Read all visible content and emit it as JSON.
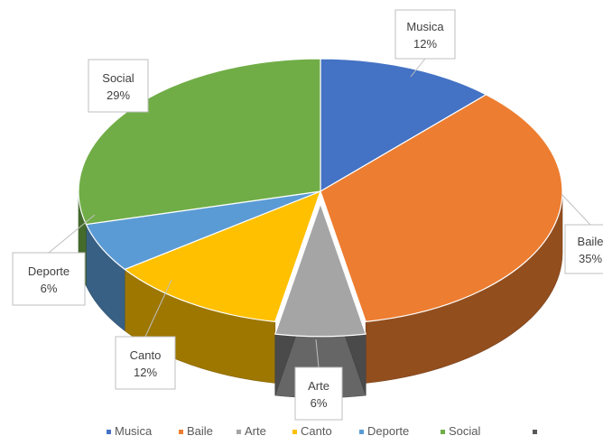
{
  "chart_data": {
    "type": "pie",
    "style": "3d",
    "title": "",
    "slices": [
      {
        "label": "Musica",
        "value": 12,
        "display": "12%",
        "color": "#4472c4"
      },
      {
        "label": "Baile",
        "value": 35,
        "display": "35%",
        "color": "#ed7d31"
      },
      {
        "label": "Arte",
        "value": 6,
        "display": "6%",
        "color": "#a5a5a5"
      },
      {
        "label": "Canto",
        "value": 12,
        "display": "12%",
        "color": "#ffc000"
      },
      {
        "label": "Deporte",
        "value": 6,
        "display": "6%",
        "color": "#5b9bd5"
      },
      {
        "label": "Social",
        "value": 29,
        "display": "29%",
        "color": "#70ad47"
      }
    ],
    "legend_position": "bottom",
    "legend_extra_marker": true
  }
}
